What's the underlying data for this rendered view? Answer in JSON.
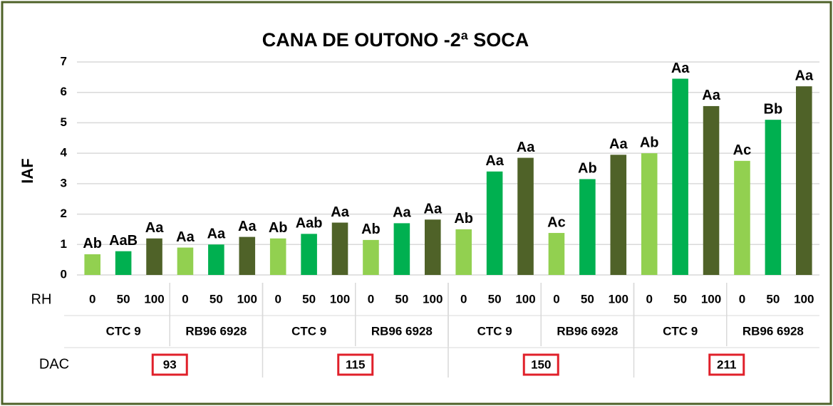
{
  "chart_data": {
    "type": "bar",
    "title": "CANA DE OUTONO -2ª SOCA",
    "y_label": "IAF",
    "x_label": "RH",
    "group2_label": "DAC",
    "categories": [
      "0",
      "50",
      "100",
      "0",
      "50",
      "100",
      "0",
      "50",
      "100",
      "0",
      "50",
      "100",
      "0",
      "50",
      "100",
      "0",
      "50",
      "100",
      "0",
      "50",
      "100",
      "0",
      "50",
      "100"
    ],
    "values": [
      0.68,
      0.78,
      1.2,
      0.9,
      1.0,
      1.25,
      1.2,
      1.35,
      1.72,
      1.15,
      1.7,
      1.82,
      1.5,
      3.4,
      3.85,
      1.38,
      3.15,
      3.95,
      4.0,
      6.45,
      5.55,
      3.75,
      5.1,
      6.2
    ],
    "value_labels": [
      "Ab",
      "AaB",
      "Aa",
      "Aa",
      "Aa",
      "Aa",
      "Ab",
      "Aab",
      "Aa",
      "Ab",
      "Aa",
      "Aa",
      "Ab",
      "Aa",
      "Aa",
      "Ac",
      "Ab",
      "Aa",
      "Ab",
      "Aa",
      "Aa",
      "Ac",
      "Bb",
      "Aa"
    ],
    "colors": [
      "#92d050",
      "#00b050",
      "#4f6228"
    ],
    "cultivars": [
      "CTC 9",
      "RB96 6928",
      "CTC 9",
      "RB96 6928",
      "CTC 9",
      "RB96 6928",
      "CTC 9",
      "RB96 6928"
    ],
    "dac": [
      "93",
      "115",
      "150",
      "211"
    ],
    "ylim": [
      0,
      7
    ],
    "yticks": [
      0,
      1,
      2,
      3,
      4,
      5,
      6,
      7
    ],
    "grid": true
  }
}
